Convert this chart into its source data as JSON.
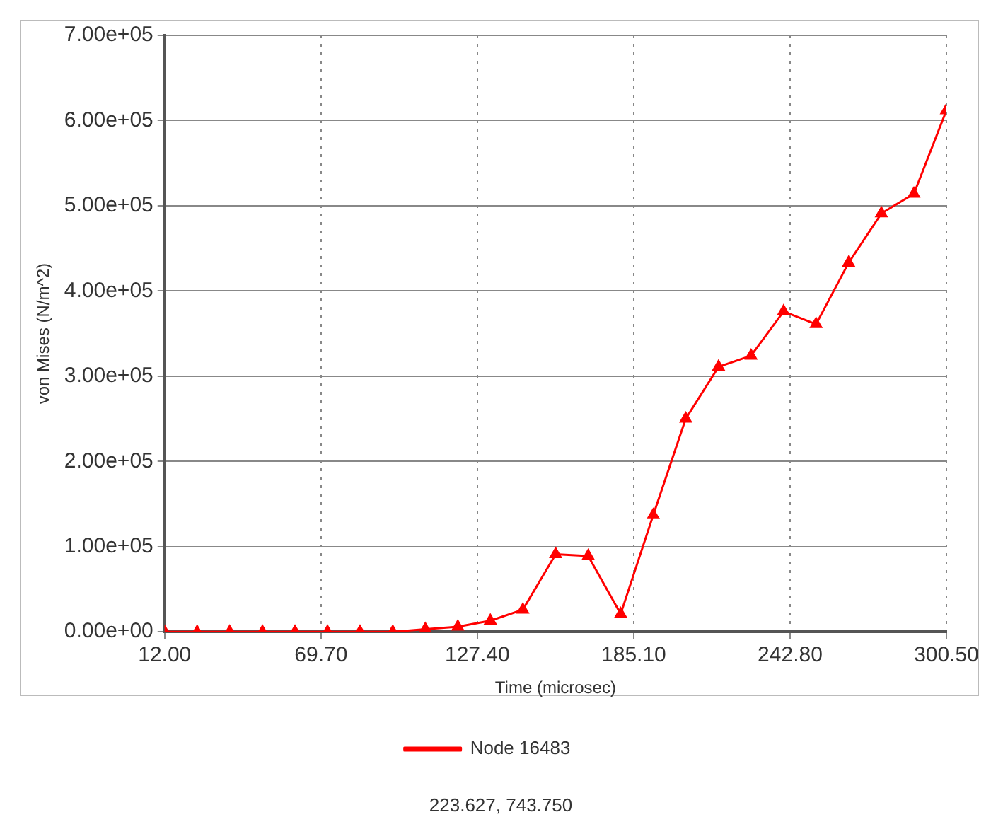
{
  "chart_data": {
    "type": "line",
    "xlabel": "Time (microsec)",
    "ylabel": "von Mises (N/m^2)",
    "x": [
      12,
      24,
      36,
      48.1,
      60.1,
      72.1,
      84.1,
      96.2,
      108.2,
      120.2,
      132.2,
      144.2,
      156.3,
      168.3,
      180.3,
      192.3,
      204.3,
      216.4,
      228.4,
      240.4,
      252.4,
      264.4,
      276.5,
      288.5,
      300.5
    ],
    "series": [
      {
        "name": "Node 16483",
        "color": "#ff0000",
        "values": [
          0,
          0,
          0,
          0,
          0,
          0,
          0,
          0,
          3000,
          6000,
          13000,
          26000,
          91000,
          89000,
          21000,
          137000,
          250000,
          311000,
          324000,
          376000,
          361000,
          433000,
          491000,
          514000,
          612000
        ]
      }
    ],
    "xlim": [
      12,
      300.5
    ],
    "xticks": [
      {
        "value": 12,
        "label": "12.00"
      },
      {
        "value": 69.7,
        "label": "69.70"
      },
      {
        "value": 127.4,
        "label": "127.40"
      },
      {
        "value": 185.1,
        "label": "185.10"
      },
      {
        "value": 242.8,
        "label": "242.80"
      },
      {
        "value": 300.5,
        "label": "300.50"
      }
    ],
    "ylim": [
      0,
      700000
    ],
    "yticks": [
      {
        "value": 0,
        "label": "0.00e+00"
      },
      {
        "value": 100000,
        "label": "1.00e+05"
      },
      {
        "value": 200000,
        "label": "2.00e+05"
      },
      {
        "value": 300000,
        "label": "3.00e+05"
      },
      {
        "value": 400000,
        "label": "4.00e+05"
      },
      {
        "value": 500000,
        "label": "5.00e+05"
      },
      {
        "value": 600000,
        "label": "6.00e+05"
      },
      {
        "value": 700000,
        "label": "7.00e+05"
      }
    ],
    "grid": true,
    "legend": "bottom",
    "marker": "triangle",
    "line_style": "solid",
    "annotations": [
      "223.627, 743.750"
    ]
  }
}
